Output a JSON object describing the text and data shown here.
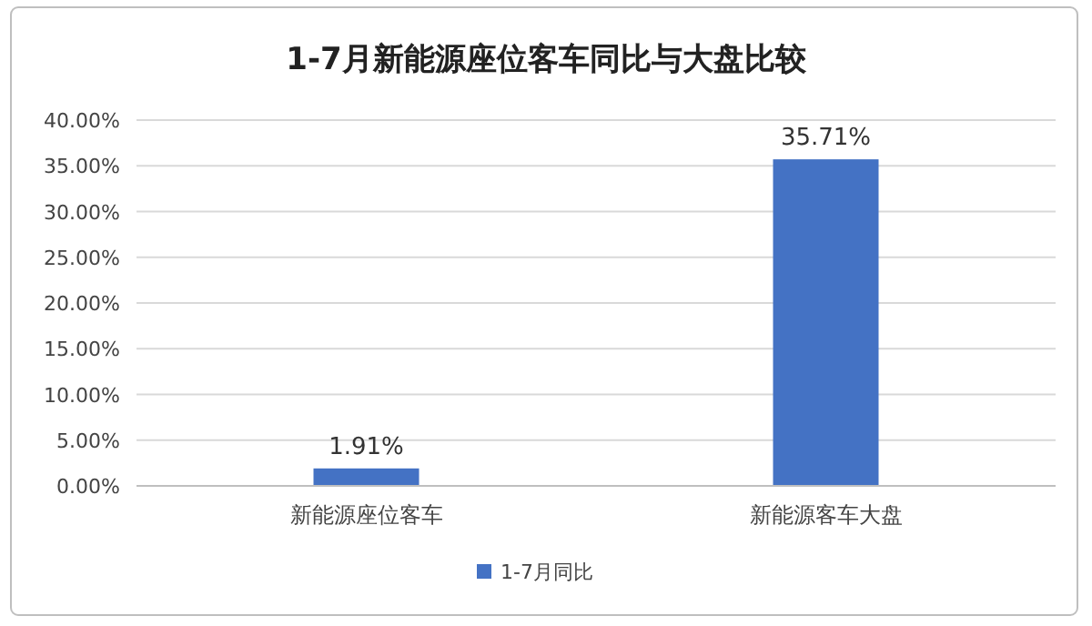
{
  "chart_data": {
    "type": "bar",
    "title": "1-7月新能源座位客车同比与大盘比较",
    "categories": [
      "新能源座位客车",
      "新能源客车大盘"
    ],
    "series": [
      {
        "name": "1-7月同比",
        "color": "#4472c4",
        "values": [
          1.91,
          35.71
        ],
        "value_labels": [
          "1.91%",
          "35.71%"
        ]
      }
    ],
    "ylim": [
      0,
      40
    ],
    "yticks": [
      {
        "value": 0,
        "label": "0.00%"
      },
      {
        "value": 5,
        "label": "5.00%"
      },
      {
        "value": 10,
        "label": "10.00%"
      },
      {
        "value": 15,
        "label": "15.00%"
      },
      {
        "value": 20,
        "label": "20.00%"
      },
      {
        "value": 25,
        "label": "25.00%"
      },
      {
        "value": 30,
        "label": "30.00%"
      },
      {
        "value": 35,
        "label": "35.00%"
      },
      {
        "value": 40,
        "label": "40.00%"
      }
    ],
    "grid": "y",
    "legend": "bottom"
  }
}
